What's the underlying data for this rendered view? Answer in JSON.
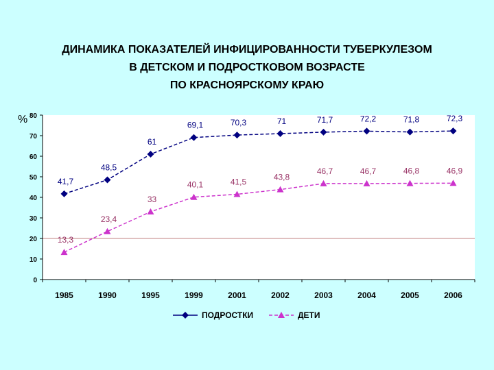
{
  "title_lines": [
    "ДИНАМИКА ПОКАЗАТЕЛЕЙ ИНФИЦИРОВАННОСТИ ТУБЕРКУЛЕЗОМ",
    "В ДЕТСКОМ И ПОДРОСТКОВОМ ВОЗРАСТЕ",
    "ПО КРАСНОЯРСКОМУ КРАЮ"
  ],
  "chart_data": {
    "type": "line",
    "title": "ДИНАМИКА ПОКАЗАТЕЛЕЙ ИНФИЦИРОВАННОСТИ ТУБЕРКУЛЕЗОМ В ДЕТСКОМ И ПОДРОСТКОВОМ ВОЗРАСТЕ ПО КРАСНОЯРСКОМУ КРАЮ",
    "ylabel": "%",
    "xlabel": "",
    "ylim": [
      0,
      80
    ],
    "yticks": [
      0,
      10,
      20,
      30,
      40,
      50,
      60,
      70,
      80
    ],
    "categories": [
      "1985",
      "1990",
      "1995",
      "1999",
      "2001",
      "2002",
      "2003",
      "2004",
      "2005",
      "2006"
    ],
    "series": [
      {
        "name": "ПОДРОСТКИ",
        "color": "#000080",
        "marker": "diamond",
        "values": [
          41.7,
          48.5,
          61,
          69.1,
          70.3,
          71,
          71.7,
          72.2,
          71.8,
          72.3
        ],
        "labels": [
          "41,7",
          "48,5",
          "61",
          "69,1",
          "70,3",
          "71",
          "71,7",
          "72,2",
          "71,8",
          "72,3"
        ]
      },
      {
        "name": "ДЕТИ",
        "color": "#cc33cc",
        "marker": "triangle",
        "values": [
          13.3,
          23.4,
          33,
          40.1,
          41.5,
          43.8,
          46.7,
          46.7,
          46.8,
          46.9
        ],
        "labels": [
          "13,3",
          "23,4",
          "33",
          "40,1",
          "41,5",
          "43,8",
          "46,7",
          "46,7",
          "46,8",
          "46,9"
        ]
      }
    ],
    "grid": false,
    "legend_position": "bottom"
  }
}
